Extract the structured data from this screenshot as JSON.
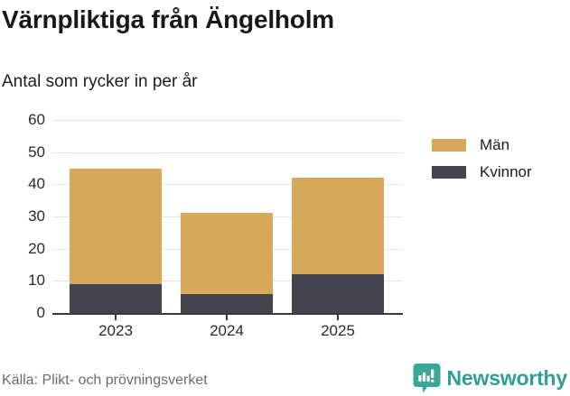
{
  "header": {
    "title": "Värnpliktiga från Ängelholm",
    "subtitle": "Antal som rycker in per år"
  },
  "chart_data": {
    "type": "bar",
    "stacked": true,
    "title": "Värnpliktiga från Ängelholm",
    "subtitle": "Antal som rycker in per år",
    "categories": [
      "2023",
      "2024",
      "2025"
    ],
    "series": [
      {
        "name": "Män",
        "color": "#d8a95c",
        "values": [
          36,
          25,
          30
        ]
      },
      {
        "name": "Kvinnor",
        "color": "#454350",
        "values": [
          9,
          6,
          12
        ]
      }
    ],
    "stack_totals": [
      45,
      31,
      42
    ],
    "xlabel": "",
    "ylabel": "",
    "ylim": [
      0,
      60
    ],
    "yticks": [
      0,
      10,
      20,
      30,
      40,
      50,
      60
    ],
    "grid": "horizontal-light",
    "legend_position": "right-top"
  },
  "footer": {
    "source": "Källa: Plikt- och prövningsverket",
    "brand": "Newsworthy"
  },
  "colors": {
    "men": "#d8a95c",
    "women": "#454350",
    "axis": "#3a3a3a",
    "gridline": "#e4e4e4",
    "source_text": "#6b6b6b",
    "brand_teal": "#2f9e95",
    "brand_icon_teal": "#3aa79a"
  },
  "icons": {
    "brand_icon": "newsworthy-speech-bubble-chart-icon"
  }
}
